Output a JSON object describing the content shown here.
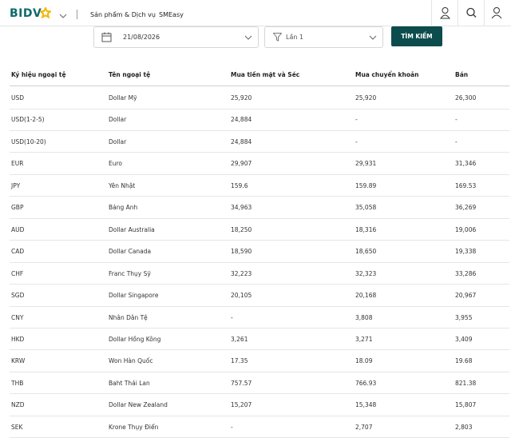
{
  "header": {
    "logo": "BIDV",
    "nav": [
      "Sản phẩm & Dịch vụ",
      "SMEasy"
    ]
  },
  "search": {
    "date": "21/08/2026",
    "session": "Lần 1",
    "button": "TÌM KIẾM"
  },
  "table": {
    "columns": [
      "Ký hiệu ngoại tệ",
      "Tên ngoại tệ",
      "Mua tiền mặt và Séc",
      "Mua chuyển khoản",
      "Bán"
    ],
    "rows": [
      [
        "USD",
        "Dollar Mỹ",
        "25,920",
        "25,920",
        "26,300"
      ],
      [
        "USD(1-2-5)",
        "Dollar",
        "24,884",
        "-",
        "-"
      ],
      [
        "USD(10-20)",
        "Dollar",
        "24,884",
        "-",
        "-"
      ],
      [
        "EUR",
        "Euro",
        "29,907",
        "29,931",
        "31,346"
      ],
      [
        "JPY",
        "Yên Nhật",
        "159.6",
        "159.89",
        "169.53"
      ],
      [
        "GBP",
        "Bảng Anh",
        "34,963",
        "35,058",
        "36,269"
      ],
      [
        "AUD",
        "Dollar Australia",
        "18,250",
        "18,316",
        "19,006"
      ],
      [
        "CAD",
        "Dollar Canada",
        "18,590",
        "18,650",
        "19,338"
      ],
      [
        "CHF",
        "Franc Thụy Sỹ",
        "32,223",
        "32,323",
        "33,286"
      ],
      [
        "SGD",
        "Dollar Singapore",
        "20,105",
        "20,168",
        "20,967"
      ],
      [
        "CNY",
        "Nhân Dân Tệ",
        "-",
        "3,808",
        "3,955"
      ],
      [
        "HKD",
        "Dollar Hồng Kông",
        "3,261",
        "3,271",
        "3,409"
      ],
      [
        "KRW",
        "Won Hàn Quốc",
        "17.35",
        "18.09",
        "19.68"
      ],
      [
        "THB",
        "Baht Thái Lan",
        "757.57",
        "766.93",
        "821.38"
      ],
      [
        "NZD",
        "Dollar New Zealand",
        "15,207",
        "15,348",
        "15,807"
      ],
      [
        "SEK",
        "Krone Thụy Điển",
        "-",
        "2,707",
        "2,803"
      ]
    ]
  }
}
